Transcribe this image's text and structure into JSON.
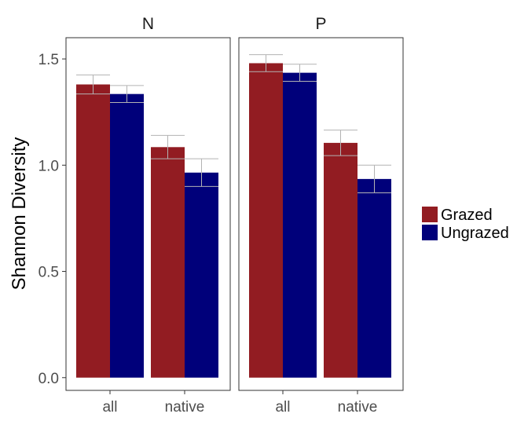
{
  "chart_data": {
    "type": "bar",
    "xlabel": "",
    "ylabel": "Shannon Diversity",
    "ylim": [
      -0.06,
      1.6
    ],
    "yticks": [
      0.0,
      0.5,
      1.0,
      1.5
    ],
    "ytick_labels": [
      "0.0",
      "0.5",
      "1.0",
      "1.5"
    ],
    "categories": [
      "all",
      "native"
    ],
    "facets": [
      {
        "label": "N",
        "series": [
          {
            "name": "Grazed",
            "values": [
              1.38,
              1.085
            ],
            "errors": [
              0.045,
              0.055
            ]
          },
          {
            "name": "Ungrazed",
            "values": [
              1.335,
              0.965
            ],
            "errors": [
              0.04,
              0.065
            ]
          }
        ]
      },
      {
        "label": "P",
        "series": [
          {
            "name": "Grazed",
            "values": [
              1.48,
              1.105
            ],
            "errors": [
              0.04,
              0.06
            ]
          },
          {
            "name": "Ungrazed",
            "values": [
              1.435,
              0.935
            ],
            "errors": [
              0.04,
              0.065
            ]
          }
        ]
      }
    ],
    "legend": {
      "position": "right",
      "entries": [
        {
          "name": "Grazed",
          "color": "#921c22"
        },
        {
          "name": "Ungrazed",
          "color": "#00007a"
        }
      ]
    },
    "colors": {
      "Grazed": "#921c22",
      "Ungrazed": "#00007a",
      "errorbar": "#b3b3b3",
      "panel_border": "#333333"
    },
    "grid": false
  }
}
